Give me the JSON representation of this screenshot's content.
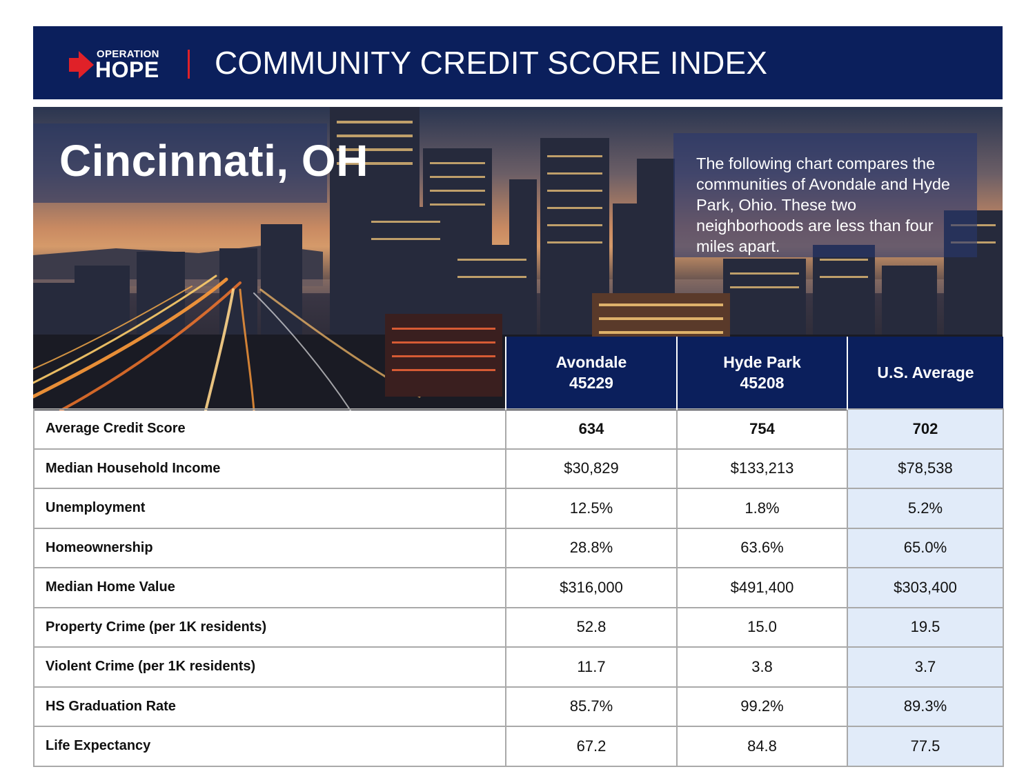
{
  "header": {
    "logo_small": "OPERATION",
    "logo_big": "HOPE",
    "title": "COMMUNITY CREDIT SCORE INDEX",
    "background_color": "#0b1f5c",
    "accent_color": "#e02128"
  },
  "hero": {
    "city": "Cincinnati, OH",
    "description": "The following chart compares the communities of Avondale and Hyde Park, Ohio.  These two neighborhoods are less than four miles apart."
  },
  "table": {
    "columns": [
      {
        "name": "Avondale",
        "zip": "45229"
      },
      {
        "name": "Hyde Park",
        "zip": "45208"
      },
      {
        "name": "U.S. Average",
        "zip": ""
      }
    ],
    "rows": [
      {
        "label": "Average Credit Score",
        "values": [
          "634",
          "754",
          "702"
        ]
      },
      {
        "label": "Median Household Income",
        "values": [
          "$30,829",
          "$133,213",
          "$78,538"
        ]
      },
      {
        "label": "Unemployment",
        "values": [
          "12.5%",
          "1.8%",
          "5.2%"
        ]
      },
      {
        "label": "Homeownership",
        "values": [
          "28.8%",
          "63.6%",
          "65.0%"
        ]
      },
      {
        "label": "Median Home Value",
        "values": [
          "$316,000",
          "$491,400",
          "$303,400"
        ]
      },
      {
        "label": "Property Crime (per 1K residents)",
        "values": [
          "52.8",
          "15.0",
          "19.5"
        ]
      },
      {
        "label": "Violent Crime (per 1K residents)",
        "values": [
          "11.7",
          "3.8",
          "3.7"
        ]
      },
      {
        "label": "HS Graduation Rate",
        "values": [
          "85.7%",
          "99.2%",
          "89.3%"
        ]
      },
      {
        "label": "Life Expectancy",
        "values": [
          "67.2",
          "84.8",
          "77.5"
        ]
      }
    ]
  },
  "colors": {
    "navy": "#0b1f5c",
    "us_column_bg": "#e1ebf9",
    "grid": "#a9a9a9"
  }
}
